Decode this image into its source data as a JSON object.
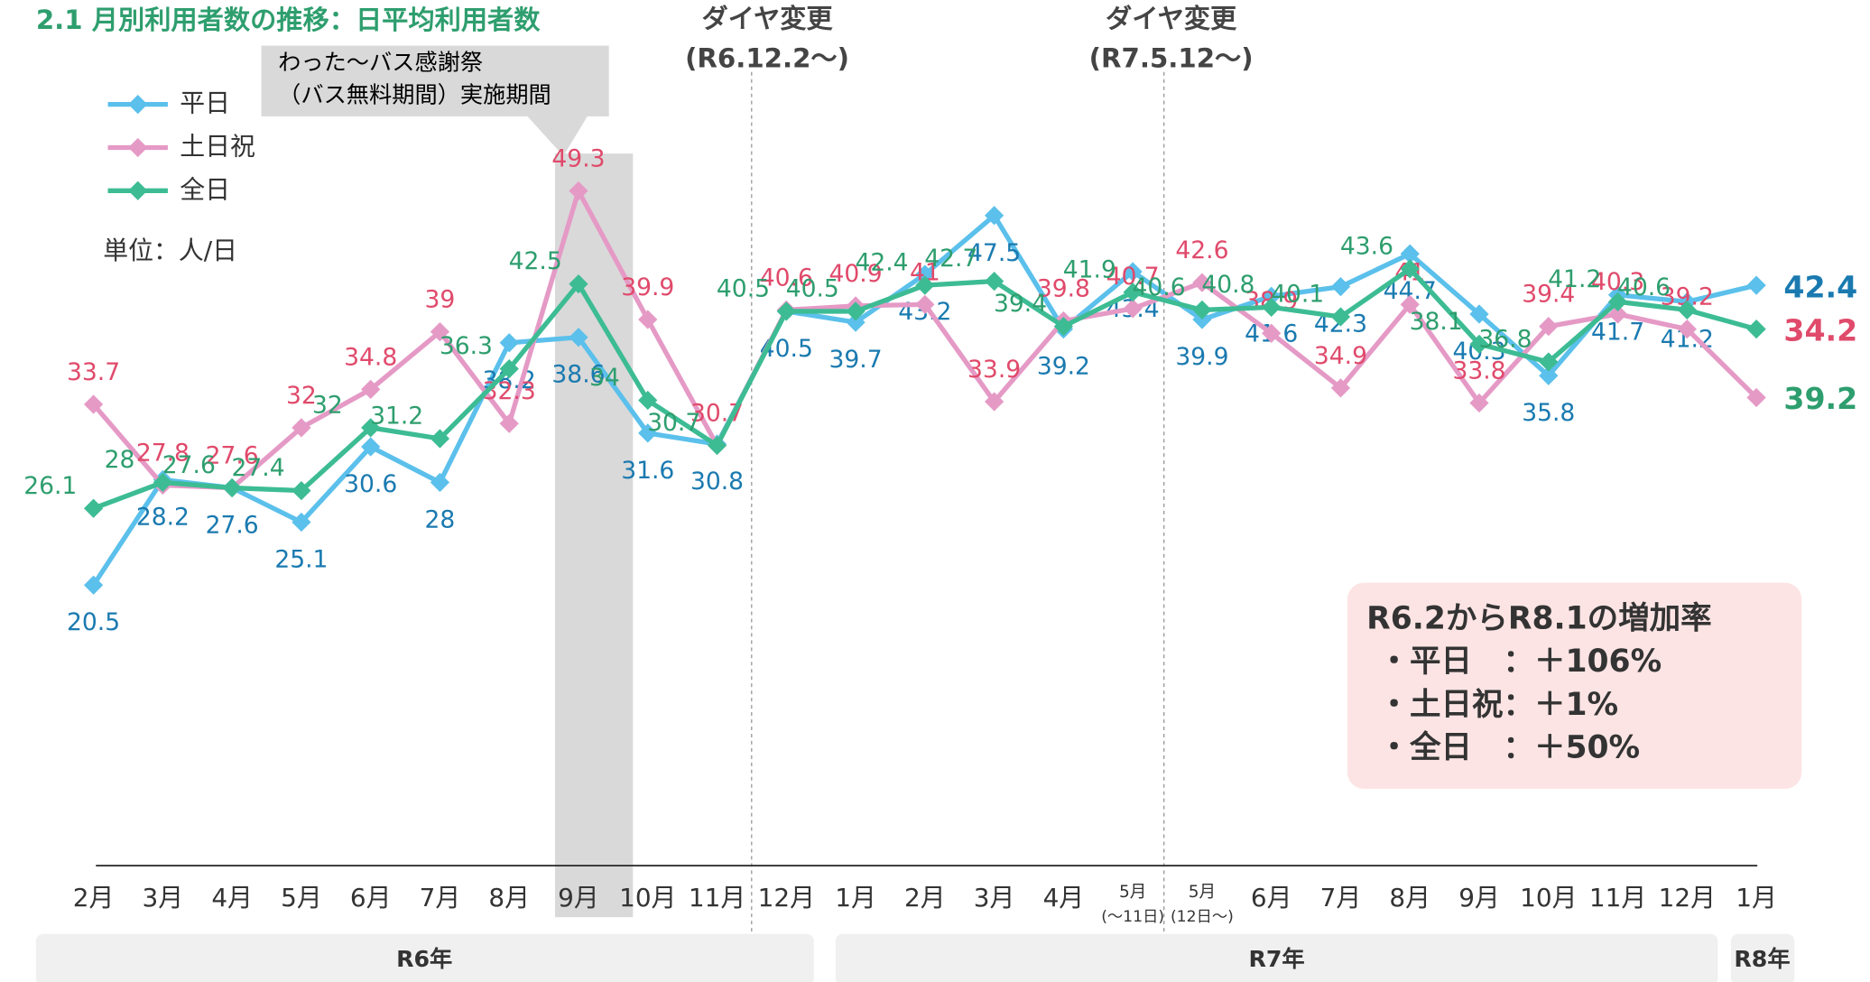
{
  "chart_data": {
    "type": "line",
    "title": "2.1  月別利用者数の推移：日平均利用者数",
    "unit": "単位：人/日",
    "categories": [
      "2月",
      "3月",
      "4月",
      "5月",
      "6月",
      "7月",
      "8月",
      "9月",
      "10月",
      "11月",
      "12月",
      "1月",
      "2月",
      "3月",
      "4月",
      "5月",
      "5月",
      "6月",
      "7月",
      "8月",
      "9月",
      "10月",
      "11月",
      "12月",
      "1月"
    ],
    "category_notes": [
      null,
      null,
      null,
      null,
      null,
      null,
      null,
      null,
      null,
      null,
      null,
      null,
      null,
      null,
      null,
      "(～11日)",
      "(12日～)",
      null,
      null,
      null,
      null,
      null,
      null,
      null,
      null
    ],
    "years": [
      "R6年",
      "R7年",
      "R8年"
    ],
    "ylim": [
      0,
      60
    ],
    "series": [
      {
        "name": "平日",
        "color": "#5bc0eb",
        "label_color": "#1a7ab0",
        "values": [
          20.5,
          28.2,
          27.6,
          25.1,
          30.6,
          28.0,
          38.2,
          38.6,
          31.6,
          30.8,
          40.5,
          39.7,
          43.2,
          47.5,
          39.2,
          43.4,
          39.9,
          41.6,
          42.3,
          44.7,
          40.3,
          35.8,
          41.7,
          41.2,
          42.4
        ]
      },
      {
        "name": "土日祝",
        "color": "#e59ac6",
        "label_color": "#e04a6b",
        "values": [
          33.7,
          27.8,
          27.6,
          32.0,
          34.8,
          39.0,
          32.3,
          49.3,
          39.9,
          30.7,
          40.6,
          40.9,
          41.0,
          33.9,
          39.8,
          40.7,
          42.6,
          38.9,
          34.9,
          41.0,
          33.8,
          39.4,
          40.3,
          39.2,
          34.2
        ]
      },
      {
        "name": "全日",
        "color": "#3dbc94",
        "label_color": "#2e9e6e",
        "values": [
          26.1,
          28.0,
          27.6,
          27.4,
          32.0,
          31.2,
          36.3,
          42.5,
          34.0,
          30.7,
          40.5,
          40.5,
          42.4,
          42.7,
          39.4,
          41.9,
          40.6,
          40.8,
          40.1,
          43.6,
          38.1,
          36.8,
          41.2,
          40.6,
          39.2
        ]
      }
    ],
    "annotations": {
      "event": [
        "わった～バス感謝祭",
        "（バス無料期間）実施期間"
      ],
      "change1": [
        "ダイヤ変更",
        "(R6.12.2～)"
      ],
      "change2": [
        "ダイヤ変更",
        "(R7.5.12～)"
      ]
    },
    "summary": [
      "R6.2からR8.1の増加率",
      "・平日　：＋106%",
      "・土日祝：＋1%",
      "・全日　：＋50%"
    ]
  }
}
